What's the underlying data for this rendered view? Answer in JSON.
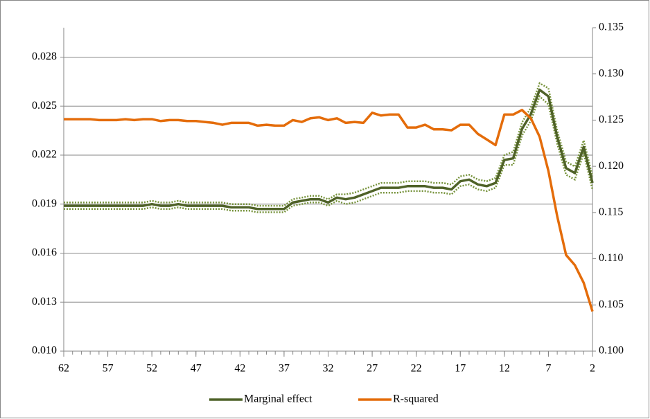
{
  "chart_data": {
    "type": "line",
    "x": [
      62,
      61,
      60,
      59,
      58,
      57,
      56,
      55,
      54,
      53,
      52,
      51,
      50,
      49,
      48,
      47,
      46,
      45,
      44,
      43,
      42,
      41,
      40,
      39,
      38,
      37,
      36,
      35,
      34,
      33,
      32,
      31,
      30,
      29,
      28,
      27,
      26,
      25,
      24,
      23,
      22,
      21,
      20,
      19,
      18,
      17,
      16,
      15,
      14,
      13,
      12,
      11,
      10,
      9,
      8,
      7,
      6,
      5,
      4,
      3,
      2
    ],
    "xlim": [
      62,
      2
    ],
    "xticks": [
      62,
      57,
      52,
      47,
      42,
      37,
      32,
      27,
      22,
      17,
      12,
      7,
      2
    ],
    "ylim": [
      0.01,
      0.0298
    ],
    "yticks": [
      {
        "value": 0.01,
        "label": "0.010"
      },
      {
        "value": 0.013,
        "label": "0.013"
      },
      {
        "value": 0.016,
        "label": "0.016"
      },
      {
        "value": 0.019,
        "label": "0.019"
      },
      {
        "value": 0.022,
        "label": "0.022"
      },
      {
        "value": 0.025,
        "label": "0.025"
      },
      {
        "value": 0.028,
        "label": "0.028"
      }
    ],
    "y2lim": [
      0.1,
      0.135
    ],
    "y2ticks": [
      {
        "value": 0.1,
        "label": "0.100"
      },
      {
        "value": 0.105,
        "label": "0.105"
      },
      {
        "value": 0.11,
        "label": "0.110"
      },
      {
        "value": 0.115,
        "label": "0.115"
      },
      {
        "value": 0.12,
        "label": "0.120"
      },
      {
        "value": 0.125,
        "label": "0.125"
      },
      {
        "value": 0.13,
        "label": "0.130"
      },
      {
        "value": 0.135,
        "label": "0.135"
      }
    ],
    "grid": true,
    "legend": "bottom",
    "series": [
      {
        "name": "Marginal effect",
        "color": "#4f6228",
        "band_color": "#77933c",
        "values": [
          0.0189,
          0.0189,
          0.0189,
          0.0189,
          0.0189,
          0.0189,
          0.0189,
          0.0189,
          0.0189,
          0.0189,
          0.019,
          0.0189,
          0.0189,
          0.019,
          0.0189,
          0.0189,
          0.0189,
          0.0189,
          0.0189,
          0.0188,
          0.0188,
          0.0188,
          0.0187,
          0.0187,
          0.0187,
          0.0187,
          0.0191,
          0.0192,
          0.0193,
          0.0193,
          0.0191,
          0.0194,
          0.0193,
          0.0194,
          0.0196,
          0.0198,
          0.02,
          0.02,
          0.02,
          0.0201,
          0.0201,
          0.0201,
          0.02,
          0.02,
          0.0199,
          0.0204,
          0.0205,
          0.0202,
          0.0201,
          0.0203,
          0.0217,
          0.0218,
          0.0236,
          0.0245,
          0.026,
          0.0256,
          0.0231,
          0.0212,
          0.0209,
          0.0225,
          0.0203
        ],
        "upper": [
          0.0191,
          0.0191,
          0.0191,
          0.0191,
          0.0191,
          0.0191,
          0.0191,
          0.0191,
          0.0191,
          0.0191,
          0.0192,
          0.0191,
          0.0191,
          0.0192,
          0.0191,
          0.0191,
          0.0191,
          0.0191,
          0.0191,
          0.019,
          0.019,
          0.019,
          0.0189,
          0.0189,
          0.0189,
          0.0189,
          0.0193,
          0.0194,
          0.0195,
          0.0195,
          0.0193,
          0.0196,
          0.0196,
          0.0197,
          0.0199,
          0.0201,
          0.0203,
          0.0203,
          0.0203,
          0.0204,
          0.0204,
          0.0204,
          0.0203,
          0.0203,
          0.0202,
          0.0207,
          0.0208,
          0.0205,
          0.0204,
          0.0206,
          0.022,
          0.0222,
          0.024,
          0.0249,
          0.0264,
          0.0261,
          0.0235,
          0.0216,
          0.0213,
          0.0229,
          0.0207
        ],
        "lower": [
          0.0187,
          0.0187,
          0.0187,
          0.0187,
          0.0187,
          0.0187,
          0.0187,
          0.0187,
          0.0187,
          0.0187,
          0.0188,
          0.0187,
          0.0187,
          0.0188,
          0.0187,
          0.0187,
          0.0187,
          0.0187,
          0.0187,
          0.0186,
          0.0186,
          0.0186,
          0.0185,
          0.0185,
          0.0185,
          0.0185,
          0.0189,
          0.019,
          0.0191,
          0.0191,
          0.0189,
          0.0192,
          0.019,
          0.0191,
          0.0193,
          0.0195,
          0.0197,
          0.0197,
          0.0197,
          0.0198,
          0.0198,
          0.0198,
          0.0197,
          0.0197,
          0.0196,
          0.0201,
          0.0202,
          0.0199,
          0.0198,
          0.02,
          0.0214,
          0.0214,
          0.0232,
          0.0241,
          0.0256,
          0.0251,
          0.0227,
          0.0208,
          0.0205,
          0.0221,
          0.0199
        ]
      },
      {
        "name": "R-squared",
        "color": "#e46c0a",
        "axis": "y2",
        "values": [
          0.1251,
          0.1251,
          0.1251,
          0.1251,
          0.125,
          0.125,
          0.125,
          0.1251,
          0.125,
          0.1251,
          0.1251,
          0.1249,
          0.125,
          0.125,
          0.1249,
          0.1249,
          0.1248,
          0.1247,
          0.1245,
          0.1247,
          0.1247,
          0.1247,
          0.1244,
          0.1245,
          0.1244,
          0.1244,
          0.125,
          0.1248,
          0.1252,
          0.1253,
          0.125,
          0.1252,
          0.1247,
          0.1248,
          0.1247,
          0.1258,
          0.1255,
          0.1256,
          0.1256,
          0.1242,
          0.1242,
          0.1245,
          0.124,
          0.124,
          0.1239,
          0.1245,
          0.1245,
          0.1235,
          0.1229,
          0.1223,
          0.1256,
          0.1256,
          0.1261,
          0.1252,
          0.1232,
          0.1195,
          0.1146,
          0.1104,
          0.1093,
          0.1074,
          0.1043
        ]
      }
    ]
  }
}
